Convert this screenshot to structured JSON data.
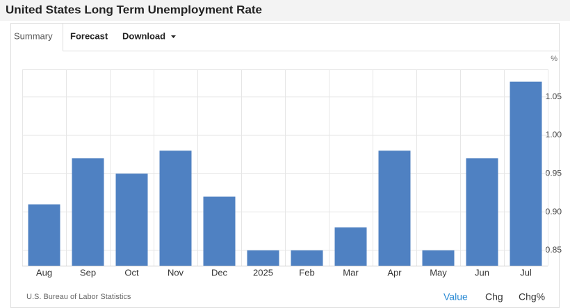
{
  "header": {
    "title": "United States Long Term Unemployment Rate"
  },
  "tabs": [
    "Summary",
    "Forecast",
    "Download"
  ],
  "chart_data": {
    "type": "bar",
    "unit": "%",
    "categories": [
      "Aug",
      "Sep",
      "Oct",
      "Nov",
      "Dec",
      "2025",
      "Feb",
      "Mar",
      "Apr",
      "May",
      "Jun",
      "Jul"
    ],
    "values": [
      0.91,
      0.97,
      0.95,
      0.98,
      0.92,
      0.85,
      0.85,
      0.88,
      0.98,
      0.85,
      0.97,
      1.07
    ],
    "color": "#4f81c2",
    "ylim": [
      0.83,
      1.086
    ],
    "yticks": [
      0.85,
      {
        "value": 0.9,
        "label": "0.90"
      },
      0.95,
      {
        "value": 1.0,
        "label": "1.00"
      },
      1.05
    ],
    "grid": true,
    "source": "U.S. Bureau of Labor Statistics"
  },
  "footer_buttons": [
    "Value",
    "Chg",
    "Chg%"
  ]
}
